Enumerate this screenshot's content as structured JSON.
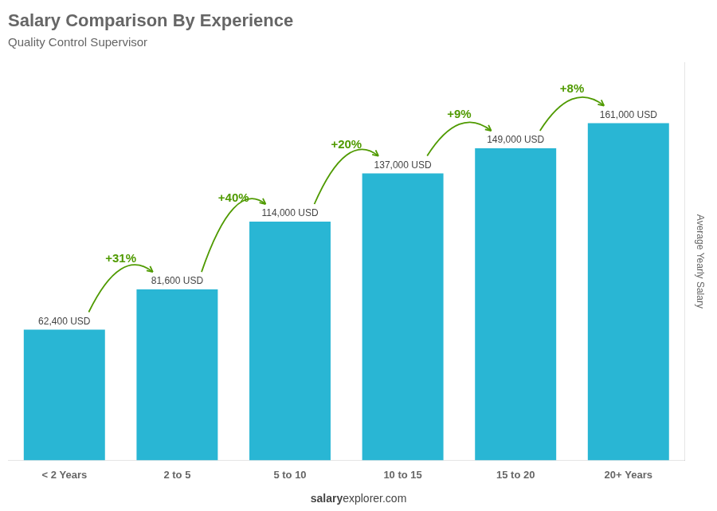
{
  "chart_data": {
    "type": "bar",
    "title": "Salary Comparison By Experience",
    "subtitle": "Quality Control Supervisor",
    "ylabel": "Average Yearly Salary",
    "categories": [
      "< 2 Years",
      "2 to 5",
      "5 to 10",
      "10 to 15",
      "15 to 20",
      "20+ Years"
    ],
    "values": [
      62400,
      81600,
      114000,
      137000,
      149000,
      161000
    ],
    "value_labels": [
      "62,400 USD",
      "81,600 USD",
      "114,000 USD",
      "137,000 USD",
      "149,000 USD",
      "161,000 USD"
    ],
    "color": "#29b6d4",
    "ylim": [
      0,
      190000
    ],
    "grid": false,
    "data_labels": true,
    "tick_labels": "x",
    "annotations": [
      {
        "text": "+31%",
        "from": "< 2 Years",
        "to": "2 to 5"
      },
      {
        "text": "+40%",
        "from": "2 to 5",
        "to": "5 to 10"
      },
      {
        "text": "+20%",
        "from": "5 to 10",
        "to": "10 to 15"
      },
      {
        "text": "+9%",
        "from": "10 to 15",
        "to": "15 to 20"
      },
      {
        "text": "+8%",
        "from": "15 to 20",
        "to": "20+ Years"
      }
    ],
    "footer": [
      "salary",
      "explorer.com"
    ]
  }
}
